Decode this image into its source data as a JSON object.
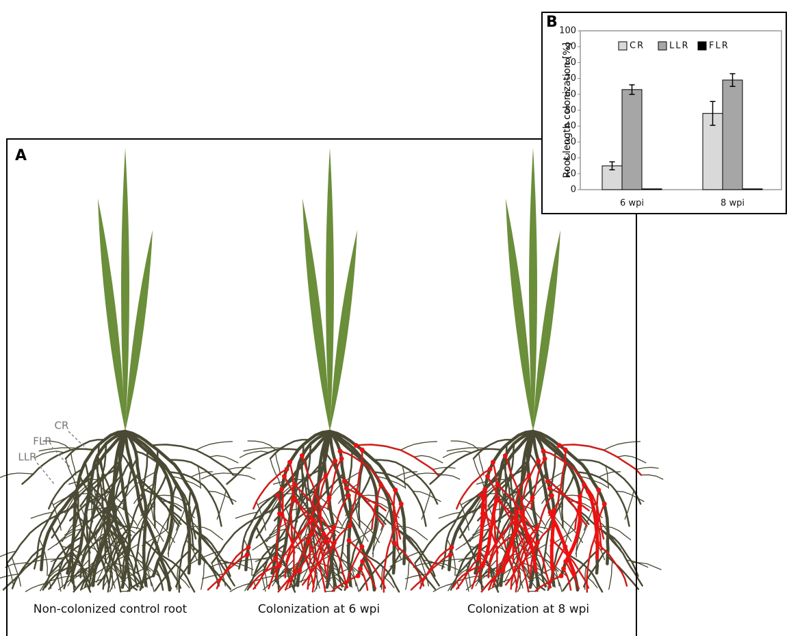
{
  "panel_a": {
    "label": "A",
    "root_labels": [
      "CR",
      "FLR",
      "LLR"
    ],
    "captions": [
      "Non-colonized control root",
      "Colonization at 6 wpi",
      "Colonization at 8 wpi"
    ]
  },
  "chart_data": {
    "type": "bar",
    "panel_label": "B",
    "y_label": "Root length colonization [%]",
    "categories": [
      "6 wpi",
      "8 wpi"
    ],
    "series": [
      {
        "name": "CR",
        "color": "#d9d9d9",
        "values": [
          15,
          48
        ],
        "error": [
          2.5,
          7.5
        ]
      },
      {
        "name": "LLR",
        "color": "#a6a6a6",
        "values": [
          63,
          69
        ],
        "error": [
          3,
          4
        ]
      },
      {
        "name": "FLR",
        "color": "#000000",
        "values": [
          0.5,
          0.5
        ]
      }
    ],
    "ylim": [
      0,
      100
    ],
    "yticks": [
      0,
      10,
      20,
      30,
      40,
      50,
      60,
      70,
      80,
      90,
      100
    ]
  }
}
